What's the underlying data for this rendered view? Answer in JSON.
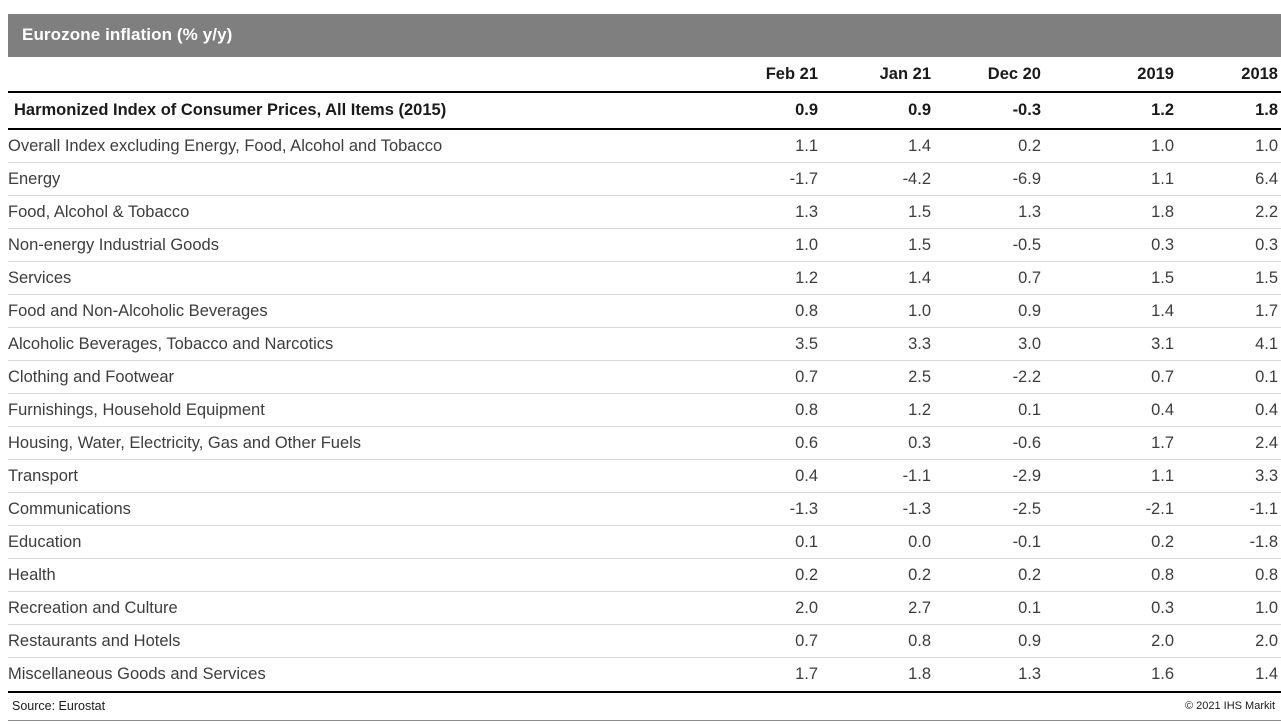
{
  "colors": {
    "title_bar_background": "#7f7f7f",
    "title_text": "#ffffff",
    "heavy_rule": "#000000",
    "row_divider": "#d9d9d9",
    "body_text": "#3d3d3d",
    "footer_rule": "#8c8c8c"
  },
  "chart_data": {
    "type": "table",
    "title": "Eurozone inflation (% y/y)",
    "columns": [
      "Feb 21",
      "Jan 21",
      "Dec 20",
      "2019",
      "2018"
    ],
    "summary_row": {
      "label": "Harmonized Index of Consumer Prices, All Items (2015)",
      "values": [
        "0.9",
        "0.9",
        "-0.3",
        "1.2",
        "1.8"
      ]
    },
    "rows": [
      {
        "label": "Overall Index excluding Energy, Food, Alcohol and Tobacco",
        "values": [
          "1.1",
          "1.4",
          "0.2",
          "1.0",
          "1.0"
        ]
      },
      {
        "label": "Energy",
        "values": [
          "-1.7",
          "-4.2",
          "-6.9",
          "1.1",
          "6.4"
        ]
      },
      {
        "label": "Food, Alcohol & Tobacco",
        "values": [
          "1.3",
          "1.5",
          "1.3",
          "1.8",
          "2.2"
        ]
      },
      {
        "label": "Non-energy Industrial Goods",
        "values": [
          "1.0",
          "1.5",
          "-0.5",
          "0.3",
          "0.3"
        ]
      },
      {
        "label": "Services",
        "values": [
          "1.2",
          "1.4",
          "0.7",
          "1.5",
          "1.5"
        ]
      },
      {
        "label": "Food and Non-Alcoholic Beverages",
        "values": [
          "0.8",
          "1.0",
          "0.9",
          "1.4",
          "1.7"
        ]
      },
      {
        "label": "Alcoholic Beverages, Tobacco and Narcotics",
        "values": [
          "3.5",
          "3.3",
          "3.0",
          "3.1",
          "4.1"
        ]
      },
      {
        "label": "Clothing and Footwear",
        "values": [
          "0.7",
          "2.5",
          "-2.2",
          "0.7",
          "0.1"
        ]
      },
      {
        "label": "Furnishings, Household Equipment",
        "values": [
          "0.8",
          "1.2",
          "0.1",
          "0.4",
          "0.4"
        ]
      },
      {
        "label": "Housing, Water, Electricity, Gas and Other Fuels",
        "values": [
          "0.6",
          "0.3",
          "-0.6",
          "1.7",
          "2.4"
        ]
      },
      {
        "label": "Transport",
        "values": [
          "0.4",
          "-1.1",
          "-2.9",
          "1.1",
          "3.3"
        ]
      },
      {
        "label": "Communications",
        "values": [
          "-1.3",
          "-1.3",
          "-2.5",
          "-2.1",
          "-1.1"
        ]
      },
      {
        "label": "Education",
        "values": [
          "0.1",
          "0.0",
          "-0.1",
          "0.2",
          "-1.8"
        ]
      },
      {
        "label": "Health",
        "values": [
          "0.2",
          "0.2",
          "0.2",
          "0.8",
          "0.8"
        ]
      },
      {
        "label": "Recreation and Culture",
        "values": [
          "2.0",
          "2.7",
          "0.1",
          "0.3",
          "1.0"
        ]
      },
      {
        "label": "Restaurants and Hotels",
        "values": [
          "0.7",
          "0.8",
          "0.9",
          "2.0",
          "2.0"
        ]
      },
      {
        "label": "Miscellaneous Goods and Services",
        "values": [
          "1.7",
          "1.8",
          "1.3",
          "1.6",
          "1.4"
        ]
      }
    ],
    "source": "Source: Eurostat",
    "copyright": "© 2021 IHS Markit"
  }
}
